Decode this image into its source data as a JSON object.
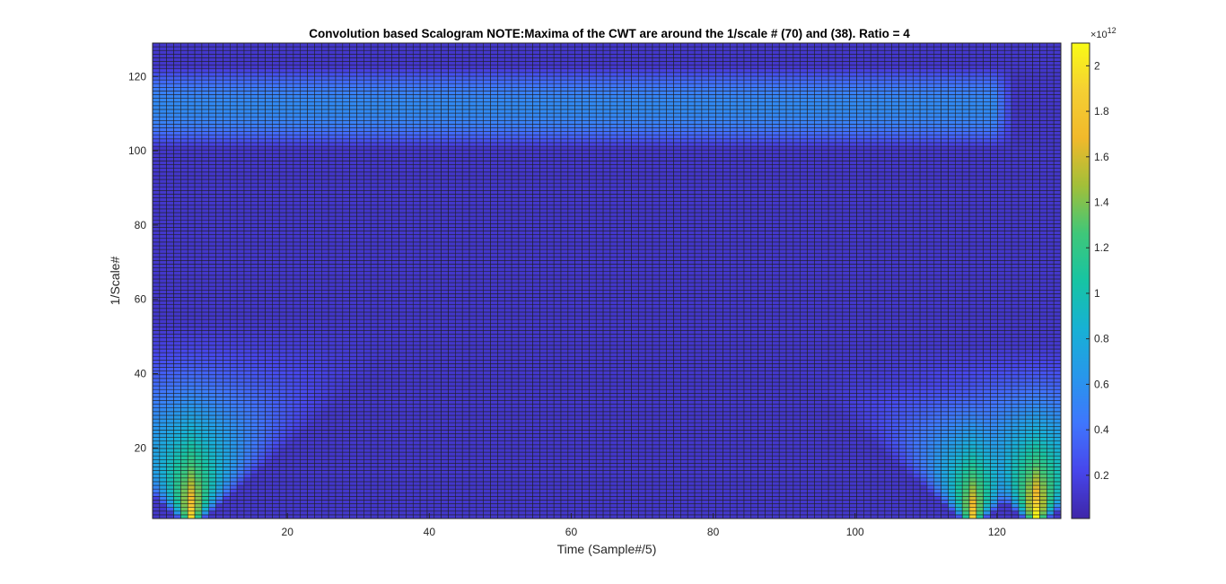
{
  "chart_data": {
    "type": "heatmap",
    "title": "Convolution based Scalogram NOTE:Maxima of the CWT are around the 1/scale # (70) and (38). Ratio = 4",
    "xlabel": "Time (Sample#/5)",
    "ylabel": "1/Scale#",
    "xlim": [
      1,
      129
    ],
    "ylim": [
      1,
      129
    ],
    "x_ticks": [
      20,
      40,
      60,
      80,
      100,
      120
    ],
    "y_ticks": [
      20,
      40,
      60,
      80,
      100,
      120
    ],
    "grid_cols": 129,
    "grid_rows": 129,
    "colormap": "parula",
    "edge_color": "#1f1f1f",
    "colorbar": {
      "exponent_label": "×10",
      "exponent": "12",
      "range": [
        0.01,
        2.1
      ],
      "ticks": [
        0.2,
        0.4,
        0.6,
        0.8,
        1,
        1.2,
        1.4,
        1.6,
        1.8,
        2
      ],
      "tick_labels": [
        "0.2",
        "0.4",
        "0.6",
        "0.8",
        "1",
        "1.2",
        "1.4",
        "1.6",
        "1.8",
        "2"
      ]
    },
    "features": [
      {
        "kind": "horizontal_band",
        "y_range": [
          102,
          124
        ],
        "x_range": [
          1,
          120
        ],
        "peak_y": 112,
        "peak_value": 0.55
      },
      {
        "kind": "cone",
        "apex_x": 6,
        "apex_y": 1,
        "top_y": 55,
        "peak_value": 1.85
      },
      {
        "kind": "cone",
        "apex_x": 117,
        "apex_y": 1,
        "top_y": 45,
        "peak_value": 1.8
      },
      {
        "kind": "cone",
        "apex_x": 126,
        "apex_y": 1,
        "top_y": 50,
        "peak_value": 2.0
      }
    ]
  }
}
